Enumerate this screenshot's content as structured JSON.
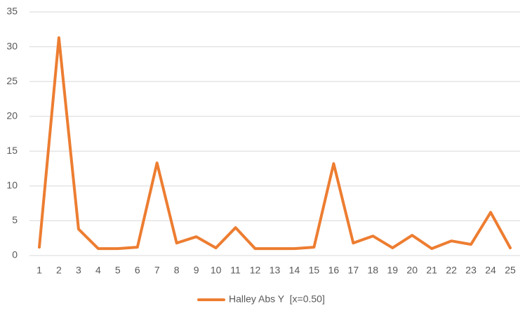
{
  "chart_data": {
    "type": "line",
    "categories": [
      "1",
      "2",
      "3",
      "4",
      "5",
      "6",
      "7",
      "8",
      "9",
      "10",
      "11",
      "12",
      "13",
      "14",
      "15",
      "16",
      "17",
      "18",
      "19",
      "20",
      "21",
      "22",
      "23",
      "24",
      "25"
    ],
    "series": [
      {
        "name": "Halley Abs Y  [x=0.50]",
        "color": "#ed7d31",
        "values": [
          1.2,
          31.3,
          3.8,
          1.0,
          1.0,
          1.2,
          13.3,
          1.8,
          2.7,
          1.1,
          4.0,
          1.0,
          1.0,
          1.0,
          1.2,
          13.2,
          1.8,
          2.8,
          1.1,
          2.9,
          1.0,
          2.1,
          1.6,
          6.2,
          1.1
        ]
      }
    ],
    "ylim": [
      0,
      35
    ],
    "yticks": [
      0,
      5,
      10,
      15,
      20,
      25,
      30,
      35
    ],
    "grid": true,
    "legend": "bottom"
  }
}
